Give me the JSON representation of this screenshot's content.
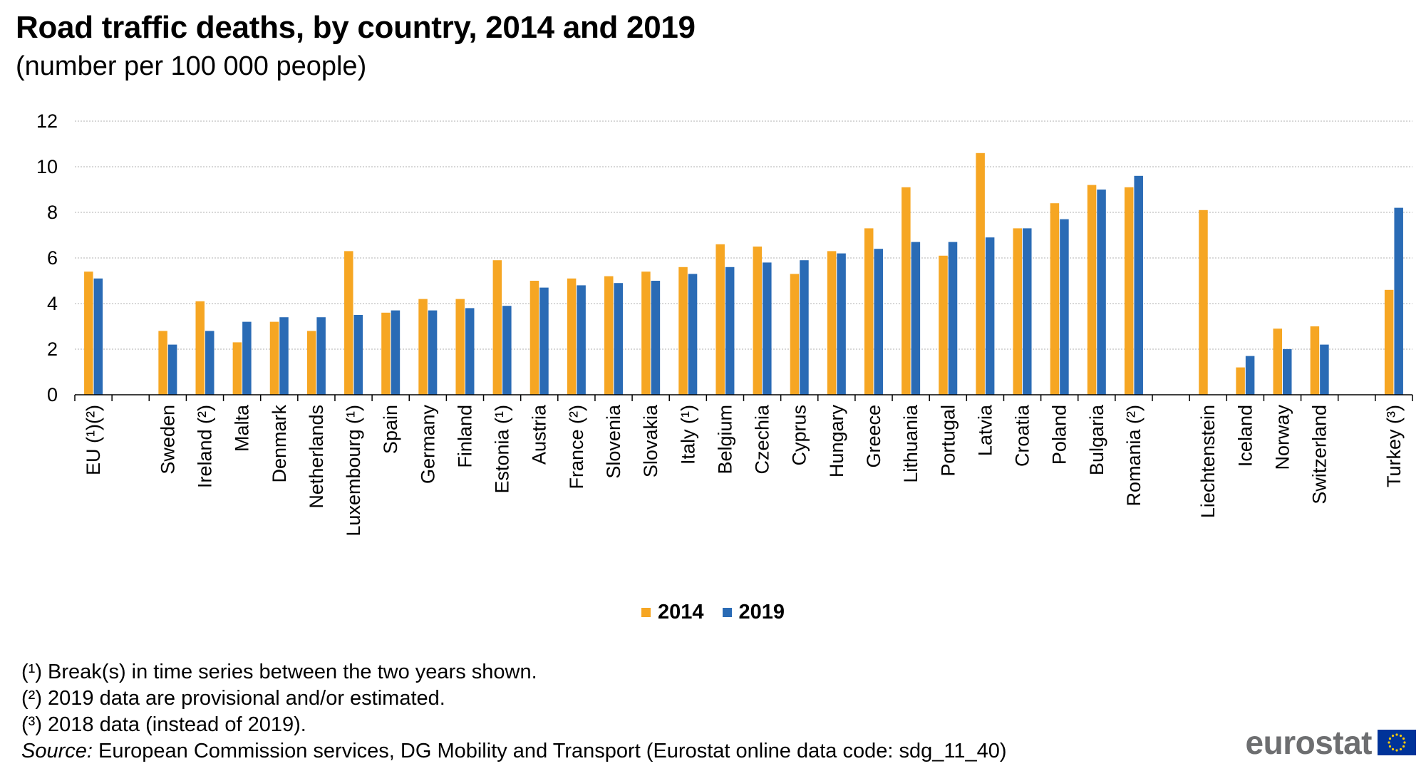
{
  "title": "Road traffic deaths, by country, 2014 and 2019",
  "subtitle": "(number per 100 000 people)",
  "chart_data": {
    "type": "bar",
    "title": "Road traffic deaths, by country, 2014 and 2019",
    "subtitle": "(number per 100 000 people)",
    "xlabel": "",
    "ylabel": "",
    "ylim": [
      0,
      12
    ],
    "yticks": [
      0,
      2,
      4,
      6,
      8,
      10,
      12
    ],
    "grid": true,
    "legend_position": "bottom-center",
    "categories": [
      "EU (¹)(²)",
      "",
      "Sweden",
      "Ireland (²)",
      "Malta",
      "Denmark",
      "Netherlands",
      "Luxembourg (¹)",
      "Spain",
      "Germany",
      "Finland",
      "Estonia (¹)",
      "Austria",
      "France (²)",
      "Slovenia",
      "Slovakia",
      "Italy (¹)",
      "Belgium",
      "Czechia",
      "Cyprus",
      "Hungary",
      "Greece",
      "Lithuania",
      "Portugal",
      "Latvia",
      "Croatia",
      "Poland",
      "Bulgaria",
      "Romania (²)",
      "",
      "Liechtenstein",
      "Iceland",
      "Norway",
      "Switzerland",
      "",
      "Turkey (³)"
    ],
    "series": [
      {
        "name": "2014",
        "color": "#f6a623",
        "values": [
          5.4,
          null,
          2.8,
          4.1,
          2.3,
          3.2,
          2.8,
          6.3,
          3.6,
          4.2,
          4.2,
          5.9,
          5.0,
          5.1,
          5.2,
          5.4,
          5.6,
          6.6,
          6.5,
          5.3,
          6.3,
          7.3,
          9.1,
          6.1,
          10.6,
          7.3,
          8.4,
          9.2,
          9.1,
          null,
          8.1,
          1.2,
          2.9,
          3.0,
          null,
          4.6
        ]
      },
      {
        "name": "2019",
        "color": "#2a6bb5",
        "values": [
          5.1,
          null,
          2.2,
          2.8,
          3.2,
          3.4,
          3.4,
          3.5,
          3.7,
          3.7,
          3.8,
          3.9,
          4.7,
          4.8,
          4.9,
          5.0,
          5.3,
          5.6,
          5.8,
          5.9,
          6.2,
          6.4,
          6.7,
          6.7,
          6.9,
          7.3,
          7.7,
          9.0,
          9.6,
          null,
          null,
          1.7,
          2.0,
          2.2,
          null,
          8.2
        ]
      }
    ]
  },
  "legend": [
    {
      "label": "2014",
      "color": "#f6a623"
    },
    {
      "label": "2019",
      "color": "#2a6bb5"
    }
  ],
  "notes": [
    "(¹) Break(s) in time series between the two years shown.",
    "(²) 2019 data are provisional and/or estimated.",
    "(³) 2018 data (instead of 2019)."
  ],
  "source": {
    "label": "Source:",
    "text": " European Commission services, DG Mobility and Transport (Eurostat online data code: sdg_11_40)"
  },
  "brand": {
    "name": "eurostat",
    "flag_icon": "eu-flag-icon",
    "flag_blue": "#003399",
    "flag_yellow": "#ffcc00"
  }
}
